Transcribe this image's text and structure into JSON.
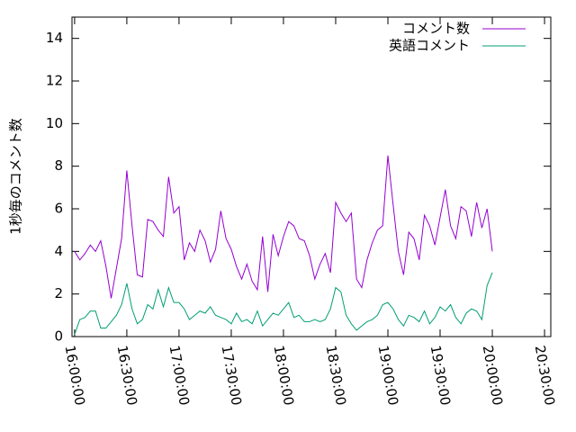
{
  "chart_data": {
    "type": "line",
    "ylabel": "1秒毎のコメント数",
    "x": [
      "16:00:00",
      "16:03:00",
      "16:06:00",
      "16:09:00",
      "16:12:00",
      "16:15:00",
      "16:18:00",
      "16:21:00",
      "16:24:00",
      "16:27:00",
      "16:30:00",
      "16:33:00",
      "16:36:00",
      "16:39:00",
      "16:42:00",
      "16:45:00",
      "16:48:00",
      "16:51:00",
      "16:54:00",
      "16:57:00",
      "17:00:00",
      "17:03:00",
      "17:06:00",
      "17:09:00",
      "17:12:00",
      "17:15:00",
      "17:18:00",
      "17:21:00",
      "17:24:00",
      "17:27:00",
      "17:30:00",
      "17:33:00",
      "17:36:00",
      "17:39:00",
      "17:42:00",
      "17:45:00",
      "17:48:00",
      "17:51:00",
      "17:54:00",
      "17:57:00",
      "18:00:00",
      "18:03:00",
      "18:06:00",
      "18:09:00",
      "18:12:00",
      "18:15:00",
      "18:18:00",
      "18:21:00",
      "18:24:00",
      "18:27:00",
      "18:30:00",
      "18:33:00",
      "18:36:00",
      "18:39:00",
      "18:42:00",
      "18:45:00",
      "18:48:00",
      "18:51:00",
      "18:54:00",
      "18:57:00",
      "19:00:00",
      "19:03:00",
      "19:06:00",
      "19:09:00",
      "19:12:00",
      "19:15:00",
      "19:18:00",
      "19:21:00",
      "19:24:00",
      "19:27:00",
      "19:30:00",
      "19:33:00",
      "19:36:00",
      "19:39:00",
      "19:42:00",
      "19:45:00",
      "19:48:00",
      "19:51:00",
      "19:54:00",
      "19:57:00",
      "20:00:00"
    ],
    "series": [
      {
        "name": "コメント数",
        "color": "#9400d3",
        "values": [
          4.0,
          3.6,
          3.9,
          4.3,
          4.0,
          4.5,
          3.3,
          1.8,
          3.2,
          4.6,
          7.8,
          5.2,
          2.9,
          2.8,
          5.5,
          5.4,
          5.0,
          4.7,
          7.5,
          5.8,
          6.1,
          3.6,
          4.4,
          4.0,
          5.0,
          4.5,
          3.5,
          4.1,
          5.9,
          4.6,
          4.1,
          3.3,
          2.7,
          3.4,
          2.6,
          2.2,
          4.7,
          2.1,
          4.8,
          3.8,
          4.7,
          5.4,
          5.2,
          4.6,
          4.5,
          3.8,
          2.7,
          3.4,
          3.9,
          3.0,
          6.3,
          5.8,
          5.4,
          5.8,
          2.7,
          2.3,
          3.6,
          4.4,
          5.0,
          5.2,
          8.5,
          6.2,
          4.0,
          2.9,
          4.9,
          4.6,
          3.6,
          5.7,
          5.2,
          4.3,
          5.6,
          6.9,
          5.2,
          4.6,
          6.1,
          5.9,
          4.7,
          6.3,
          5.1,
          6.0,
          4.0
        ]
      },
      {
        "name": "英語コメント",
        "color": "#009e73",
        "values": [
          0.1,
          0.8,
          0.9,
          1.2,
          1.2,
          0.4,
          0.4,
          0.7,
          1.0,
          1.5,
          2.5,
          1.3,
          0.6,
          0.8,
          1.5,
          1.3,
          2.2,
          1.4,
          2.3,
          1.6,
          1.6,
          1.3,
          0.8,
          1.0,
          1.2,
          1.1,
          1.4,
          1.0,
          0.9,
          0.8,
          0.6,
          1.1,
          0.7,
          0.8,
          0.6,
          1.2,
          0.5,
          0.8,
          1.1,
          1.0,
          1.3,
          1.6,
          0.9,
          1.0,
          0.7,
          0.7,
          0.8,
          0.7,
          0.8,
          1.3,
          2.3,
          2.1,
          1.0,
          0.6,
          0.3,
          0.5,
          0.7,
          0.8,
          1.0,
          1.5,
          1.6,
          1.3,
          0.8,
          0.5,
          1.0,
          0.9,
          0.7,
          1.2,
          0.6,
          0.9,
          1.4,
          1.2,
          1.5,
          0.9,
          0.6,
          1.1,
          1.3,
          1.2,
          0.8,
          2.4,
          3.0
        ]
      }
    ],
    "xlim": [
      "15:58:30",
      "20:33:36"
    ],
    "xticks": [
      "16:00:00",
      "16:30:00",
      "17:00:00",
      "17:30:00",
      "18:00:00",
      "18:30:00",
      "19:00:00",
      "19:30:00",
      "20:00:00",
      "20:30:00"
    ],
    "ylim": [
      0,
      15
    ],
    "yticks": [
      0,
      2,
      4,
      6,
      8,
      10,
      12,
      14
    ],
    "legend": "top-right",
    "grid": false
  }
}
